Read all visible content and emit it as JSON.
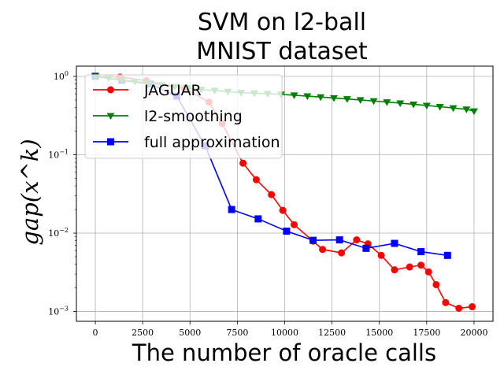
{
  "chart_data": {
    "type": "line",
    "title_lines": [
      "SVM on l2-ball",
      "MNIST dataset"
    ],
    "xlabel": "The number of oracle calls",
    "ylabel": "gap(x^k)",
    "x_ticks": [
      0,
      2500,
      5000,
      7500,
      10000,
      12500,
      15000,
      17500,
      20000
    ],
    "x_tick_labels": [
      "0",
      "2500",
      "5000",
      "7500",
      "10000",
      "12500",
      "15000",
      "17500",
      "20000"
    ],
    "y_ticks": [
      0.001,
      0.01,
      0.1,
      1
    ],
    "y_tick_labels": [
      "10^-3",
      "10^-2",
      "10^-1",
      "10^0"
    ],
    "xlim": [
      -1000,
      21000
    ],
    "ylim": [
      0.00075,
      1.35
    ],
    "yscale": "log",
    "grid": true,
    "legend_position": "top-left",
    "series": [
      {
        "name": "JAGUAR",
        "color": "#ff0000",
        "marker": "circle",
        "x": [
          0,
          1300,
          2700,
          4700,
          6000,
          6700,
          7800,
          8500,
          9300,
          9900,
          10500,
          11500,
          12000,
          13000,
          13800,
          14400,
          15100,
          15800,
          16600,
          17200,
          17600,
          18000,
          18500,
          19200,
          19900
        ],
        "y": [
          1.0,
          0.98,
          0.88,
          0.71,
          0.47,
          0.25,
          0.078,
          0.048,
          0.031,
          0.0195,
          0.0128,
          0.0079,
          0.0062,
          0.0056,
          0.0082,
          0.0073,
          0.0052,
          0.0034,
          0.0037,
          0.0039,
          0.0032,
          0.0022,
          0.0013,
          0.0011,
          0.00115
        ]
      },
      {
        "name": "l2-smoothing",
        "color": "#008000",
        "marker": "triangle-down",
        "x": [
          0,
          700,
          1400,
          2100,
          2800,
          3500,
          4200,
          4900,
          5600,
          6300,
          7000,
          7700,
          8400,
          9100,
          9800,
          10500,
          11200,
          11900,
          12600,
          13300,
          14000,
          14700,
          15400,
          16100,
          16800,
          17500,
          18200,
          18900,
          19600,
          20000
        ],
        "y": [
          1.0,
          0.95,
          0.9,
          0.86,
          0.82,
          0.78,
          0.74,
          0.71,
          0.68,
          0.66,
          0.64,
          0.62,
          0.61,
          0.6,
          0.59,
          0.575,
          0.56,
          0.545,
          0.53,
          0.515,
          0.5,
          0.485,
          0.47,
          0.455,
          0.44,
          0.425,
          0.41,
          0.395,
          0.38,
          0.36
        ]
      },
      {
        "name": "full approximation",
        "color": "#0000ff",
        "marker": "square",
        "x": [
          0,
          1400,
          2900,
          4300,
          5800,
          7200,
          8600,
          10100,
          11500,
          12900,
          14300,
          15800,
          17200,
          18600
        ],
        "y": [
          1.0,
          0.89,
          0.8,
          0.56,
          0.13,
          0.02,
          0.0152,
          0.0106,
          0.0081,
          0.0082,
          0.0064,
          0.0074,
          0.0058,
          0.0052
        ]
      }
    ]
  }
}
